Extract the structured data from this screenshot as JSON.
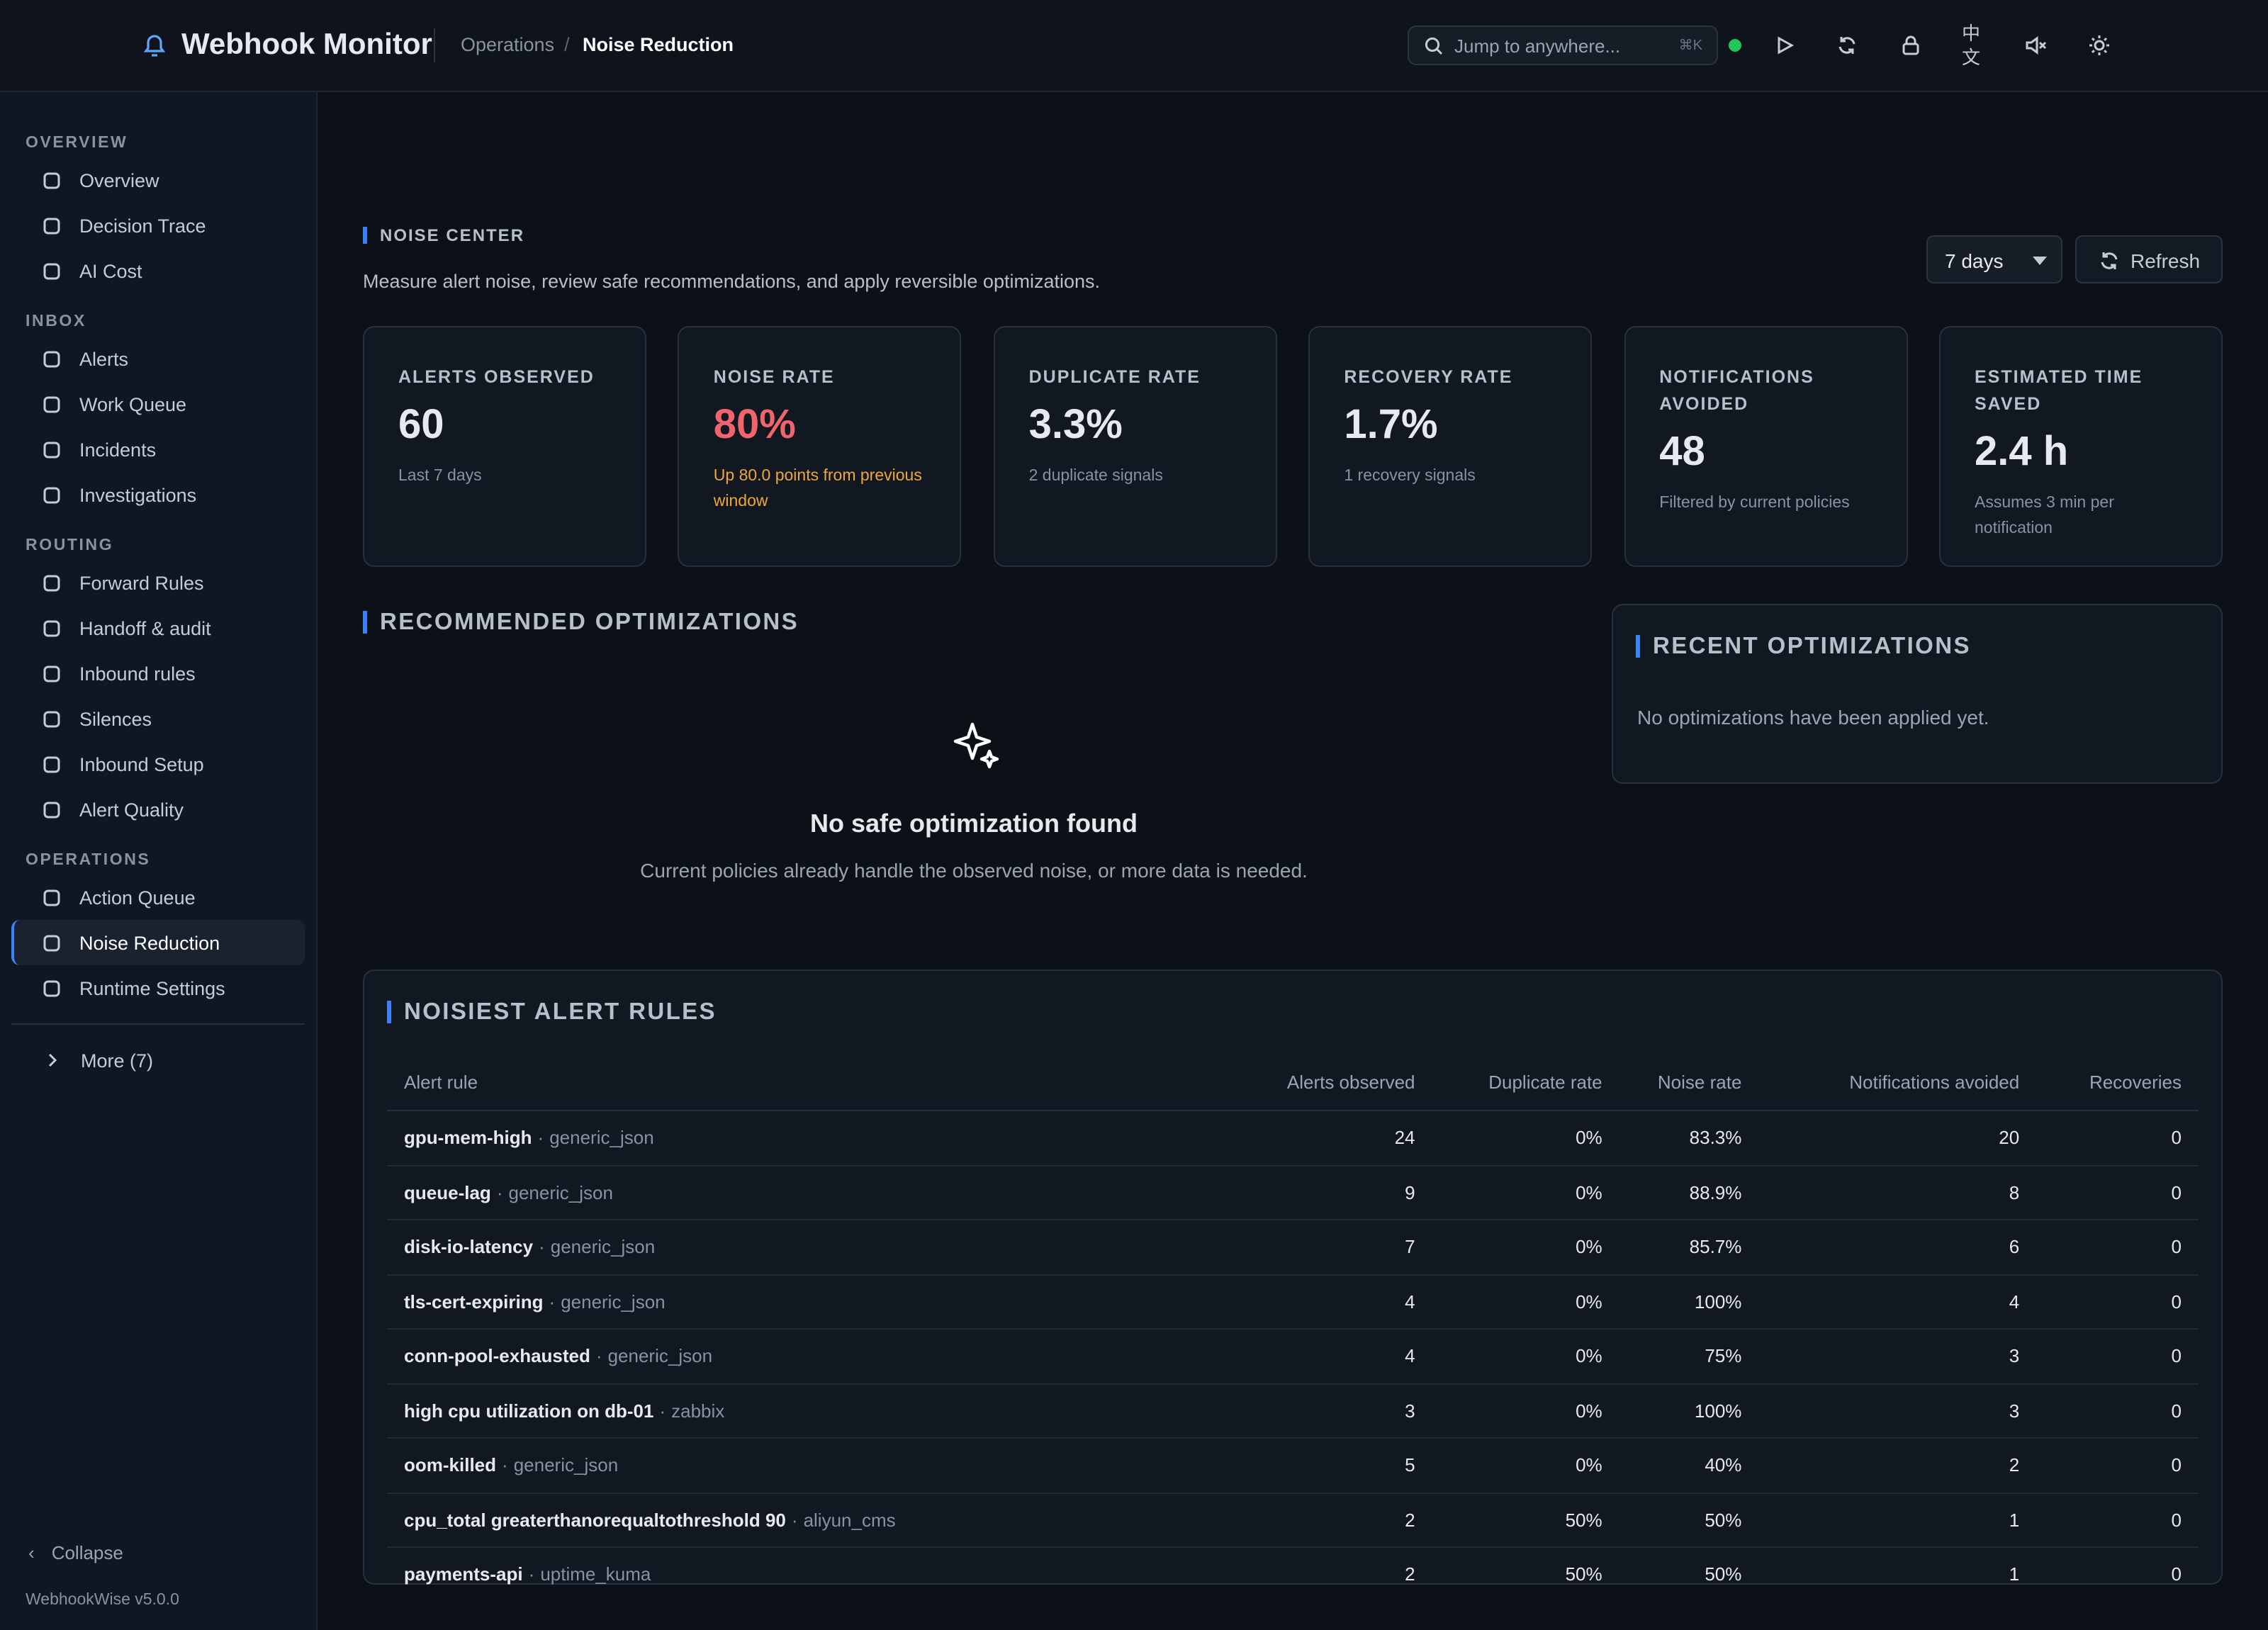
{
  "header": {
    "app_name": "Webhook Monitor",
    "breadcrumb": [
      "Operations",
      "Noise Reduction"
    ],
    "search_placeholder": "Jump to anywhere...",
    "search_shortcut": "⌘K",
    "language": "中文"
  },
  "sidebar": {
    "sections": [
      {
        "title": "OVERVIEW",
        "items": [
          "Overview",
          "Decision Trace",
          "AI Cost"
        ]
      },
      {
        "title": "INBOX",
        "items": [
          "Alerts",
          "Work Queue",
          "Incidents",
          "Investigations"
        ]
      },
      {
        "title": "ROUTING",
        "items": [
          "Forward Rules",
          "Handoff & audit",
          "Inbound rules",
          "Silences",
          "Inbound Setup",
          "Alert Quality"
        ]
      },
      {
        "title": "OPERATIONS",
        "items": [
          "Action Queue",
          "Noise Reduction",
          "Runtime Settings"
        ]
      }
    ],
    "active": "Noise Reduction",
    "more": "More (7)",
    "collapse": "Collapse",
    "version": "WebhookWise v5.0.0"
  },
  "page": {
    "title": "NOISE CENTER",
    "subtitle": "Measure alert noise, review safe recommendations, and apply reversible optimizations.",
    "range": "7 days",
    "refresh": "Refresh"
  },
  "kpis": [
    {
      "label": "ALERTS OBSERVED",
      "value": "60",
      "note": "Last 7 days"
    },
    {
      "label": "NOISE RATE",
      "value": "80%",
      "note": "Up 80.0 points from previous window",
      "tone": "bad"
    },
    {
      "label": "DUPLICATE RATE",
      "value": "3.3%",
      "note": "2 duplicate signals"
    },
    {
      "label": "RECOVERY RATE",
      "value": "1.7%",
      "note": "1 recovery signals"
    },
    {
      "label": "NOTIFICATIONS AVOIDED",
      "value": "48",
      "note": "Filtered by current policies"
    },
    {
      "label": "ESTIMATED TIME SAVED",
      "value": "2.4 h",
      "note": "Assumes 3 min per notification"
    }
  ],
  "recommended": {
    "title": "RECOMMENDED OPTIMIZATIONS",
    "empty_title": "No safe optimization found",
    "empty_text": "Current policies already handle the observed noise, or more data is needed."
  },
  "recent": {
    "title": "RECENT OPTIMIZATIONS",
    "empty_text": "No optimizations have been applied yet."
  },
  "table": {
    "title": "NOISIEST ALERT RULES",
    "separator": "·",
    "columns": [
      "Alert rule",
      "Alerts observed",
      "Duplicate rate",
      "Noise rate",
      "Notifications avoided",
      "Recoveries"
    ],
    "rows": [
      [
        "gpu-mem-high",
        "generic_json",
        "24",
        "0%",
        "83.3%",
        "20",
        "0"
      ],
      [
        "queue-lag",
        "generic_json",
        "9",
        "0%",
        "88.9%",
        "8",
        "0"
      ],
      [
        "disk-io-latency",
        "generic_json",
        "7",
        "0%",
        "85.7%",
        "6",
        "0"
      ],
      [
        "tls-cert-expiring",
        "generic_json",
        "4",
        "0%",
        "100%",
        "4",
        "0"
      ],
      [
        "conn-pool-exhausted",
        "generic_json",
        "4",
        "0%",
        "75%",
        "3",
        "0"
      ],
      [
        "high cpu utilization on db-01",
        "zabbix",
        "3",
        "0%",
        "100%",
        "3",
        "0"
      ],
      [
        "oom-killed",
        "generic_json",
        "5",
        "0%",
        "40%",
        "2",
        "0"
      ],
      [
        "cpu_total greaterthanorequaltothreshold 90",
        "aliyun_cms",
        "2",
        "50%",
        "50%",
        "1",
        "0"
      ],
      [
        "payments-api",
        "uptime_kuma",
        "2",
        "50%",
        "50%",
        "1",
        "0"
      ]
    ]
  }
}
